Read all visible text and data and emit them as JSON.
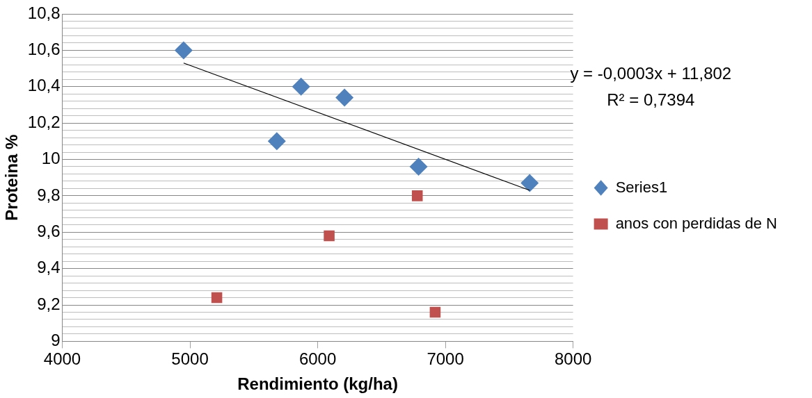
{
  "chart_data": {
    "type": "scatter",
    "xlabel": "Rendimiento (kg/ha)",
    "ylabel": "Proteina %",
    "xlim": [
      4000,
      8000
    ],
    "xticks": [
      4000,
      5000,
      6000,
      7000,
      8000
    ],
    "ylim": [
      9,
      10.8
    ],
    "yticks": [
      {
        "value": 9,
        "label": "9"
      },
      {
        "value": 9.04,
        "label": null
      },
      {
        "value": 9.08,
        "label": null
      },
      {
        "value": 9.12,
        "label": null
      },
      {
        "value": 9.16,
        "label": null
      },
      {
        "value": 9.2,
        "label": "9,2"
      },
      {
        "value": 9.24,
        "label": null
      },
      {
        "value": 9.28,
        "label": null
      },
      {
        "value": 9.32,
        "label": null
      },
      {
        "value": 9.36,
        "label": null
      },
      {
        "value": 9.4,
        "label": "9,4"
      },
      {
        "value": 9.44,
        "label": null
      },
      {
        "value": 9.48,
        "label": null
      },
      {
        "value": 9.52,
        "label": null
      },
      {
        "value": 9.56,
        "label": null
      },
      {
        "value": 9.6,
        "label": "9,6"
      },
      {
        "value": 9.64,
        "label": null
      },
      {
        "value": 9.68,
        "label": null
      },
      {
        "value": 9.72,
        "label": null
      },
      {
        "value": 9.76,
        "label": null
      },
      {
        "value": 9.8,
        "label": "9,8"
      },
      {
        "value": 9.84,
        "label": null
      },
      {
        "value": 9.88,
        "label": null
      },
      {
        "value": 9.92,
        "label": null
      },
      {
        "value": 9.96,
        "label": null
      },
      {
        "value": 10,
        "label": "10"
      },
      {
        "value": 10.04,
        "label": null
      },
      {
        "value": 10.08,
        "label": null
      },
      {
        "value": 10.12,
        "label": null
      },
      {
        "value": 10.16,
        "label": null
      },
      {
        "value": 10.2,
        "label": "10,2"
      },
      {
        "value": 10.24,
        "label": null
      },
      {
        "value": 10.28,
        "label": null
      },
      {
        "value": 10.32,
        "label": null
      },
      {
        "value": 10.36,
        "label": null
      },
      {
        "value": 10.4,
        "label": "10,4"
      },
      {
        "value": 10.44,
        "label": null
      },
      {
        "value": 10.48,
        "label": null
      },
      {
        "value": 10.52,
        "label": null
      },
      {
        "value": 10.56,
        "label": null
      },
      {
        "value": 10.6,
        "label": "10,6"
      },
      {
        "value": 10.64,
        "label": null
      },
      {
        "value": 10.68,
        "label": null
      },
      {
        "value": 10.72,
        "label": null
      },
      {
        "value": 10.76,
        "label": null
      },
      {
        "value": 10.8,
        "label": "10,8"
      }
    ],
    "grid": "y",
    "legend": "right",
    "series": [
      {
        "name": "Series1",
        "color": "#4f81bd",
        "marker": "diamond",
        "x": [
          4950,
          5870,
          6210,
          5680,
          6790,
          7660
        ],
        "values": [
          10.6,
          10.4,
          10.34,
          10.1,
          9.96,
          9.87
        ]
      },
      {
        "name": "anos con perdidas de N",
        "color": "#c0504d",
        "marker": "square",
        "x": [
          6780,
          6090,
          5210,
          6920
        ],
        "values": [
          9.8,
          9.58,
          9.24,
          9.16
        ]
      },
      {
        "type": "line",
        "color": "#000000",
        "marker": "none",
        "x": [
          4950,
          7660
        ],
        "values": [
          10.53,
          9.83
        ]
      }
    ],
    "annotations": [
      "y = -0,0003x + 11,802",
      "R² = 0,7394"
    ]
  }
}
